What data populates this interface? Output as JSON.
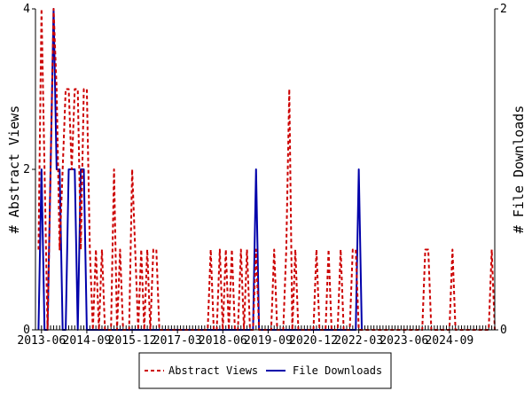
{
  "chart_data": {
    "type": "line",
    "y_left_label": "# Abstract Views",
    "y_right_label": "# File Downloads",
    "y_left_lim": [
      0,
      4
    ],
    "y_right_lim": [
      0,
      2
    ],
    "y_left_ticks": [
      "0",
      "2",
      "4"
    ],
    "y_right_ticks": [
      "0",
      "2"
    ],
    "x_tick_labels": [
      "2013-06",
      "2014-09",
      "2015-12",
      "2017-03",
      "2018-06",
      "2019-09",
      "2020-12",
      "2022-03",
      "2023-06",
      "2024-09"
    ],
    "legend": {
      "placement": "bottom-center"
    },
    "series": [
      {
        "name": "Abstract Views",
        "axis": "left",
        "color": "#cc0000",
        "dash": "dashed",
        "x": [
          "2013-05",
          "2013-06",
          "2013-07",
          "2013-08",
          "2013-09",
          "2013-10",
          "2013-11",
          "2013-12",
          "2014-01",
          "2014-02",
          "2014-03",
          "2014-04",
          "2014-05",
          "2014-06",
          "2014-07",
          "2014-08",
          "2014-09",
          "2014-10",
          "2014-11",
          "2014-12",
          "2015-01",
          "2015-02",
          "2015-03",
          "2015-04",
          "2015-05",
          "2015-06",
          "2015-07",
          "2015-08",
          "2015-09",
          "2015-10",
          "2015-11",
          "2015-12",
          "2016-01",
          "2016-02",
          "2016-03",
          "2016-04",
          "2016-05",
          "2016-06",
          "2016-07",
          "2016-08",
          "2016-09",
          "2016-10",
          "2016-11",
          "2018-01",
          "2018-02",
          "2018-03",
          "2018-04",
          "2018-05",
          "2018-06",
          "2018-07",
          "2018-08",
          "2018-09",
          "2018-10",
          "2018-11",
          "2018-12",
          "2019-01",
          "2019-02",
          "2019-03",
          "2019-04",
          "2019-05",
          "2019-06",
          "2019-10",
          "2019-11",
          "2019-12",
          "2020-01",
          "2020-02",
          "2020-03",
          "2020-04",
          "2020-05",
          "2020-06",
          "2020-07",
          "2020-08",
          "2020-09",
          "2020-10",
          "2021-01",
          "2021-02",
          "2021-03",
          "2021-04",
          "2021-05",
          "2021-06",
          "2021-07",
          "2021-08",
          "2021-09",
          "2021-10",
          "2021-11",
          "2021-12",
          "2022-01",
          "2022-02",
          "2022-03",
          "2022-04",
          "2022-05",
          "2022-06",
          "2022-07",
          "2023-12",
          "2024-01",
          "2024-02",
          "2024-03",
          "2024-04",
          "2024-05",
          "2024-06",
          "2024-07",
          "2024-08",
          "2024-09",
          "2024-10",
          "2024-11",
          "2024-12",
          "2025-01",
          "2025-02",
          "2025-03",
          "2025-04",
          "2025-05",
          "2025-06",
          "2025-07",
          "2025-08",
          "2025-09",
          "2025-10",
          "2025-11",
          "2025-12"
        ],
        "y": [
          1,
          4,
          2,
          0,
          2,
          4,
          3,
          1,
          2,
          3,
          3,
          2,
          3,
          3,
          1,
          3,
          3,
          1,
          0,
          1,
          0,
          1,
          0,
          0,
          0,
          2,
          0,
          1,
          0,
          0,
          0,
          2,
          1,
          0,
          1,
          0,
          1,
          0,
          1,
          1,
          0,
          0,
          0,
          0,
          1,
          0,
          0,
          1,
          0,
          1,
          0,
          1,
          0,
          0,
          1,
          0,
          1,
          0,
          0,
          1,
          0,
          0,
          1,
          0,
          0,
          0,
          1,
          3,
          0,
          1,
          0,
          0,
          0,
          0,
          1,
          0,
          0,
          0,
          1,
          0,
          0,
          0,
          1,
          0,
          0,
          0,
          1,
          1,
          0,
          0,
          0,
          0,
          0,
          0,
          1,
          1,
          0,
          0,
          0,
          0,
          0,
          0,
          0,
          1,
          0,
          0,
          0,
          0,
          0,
          0,
          0,
          0,
          0,
          0,
          0,
          0,
          1,
          0
        ]
      },
      {
        "name": "File Downloads",
        "axis": "right",
        "color": "#0000aa",
        "dash": "solid",
        "x": [
          "2013-05",
          "2013-06",
          "2013-07",
          "2013-08",
          "2013-09",
          "2013-10",
          "2013-11",
          "2013-12",
          "2014-01",
          "2014-02",
          "2014-03",
          "2014-04",
          "2014-05",
          "2014-06",
          "2014-07",
          "2014-08",
          "2014-09",
          "2014-10",
          "2019-04",
          "2019-05",
          "2019-06",
          "2022-02",
          "2022-03",
          "2022-04"
        ],
        "y": [
          0,
          1,
          0,
          0,
          1,
          2,
          1,
          1,
          0,
          0,
          1,
          1,
          1,
          0,
          1,
          1,
          0,
          0,
          0,
          1,
          0,
          0,
          1,
          0
        ]
      }
    ]
  }
}
